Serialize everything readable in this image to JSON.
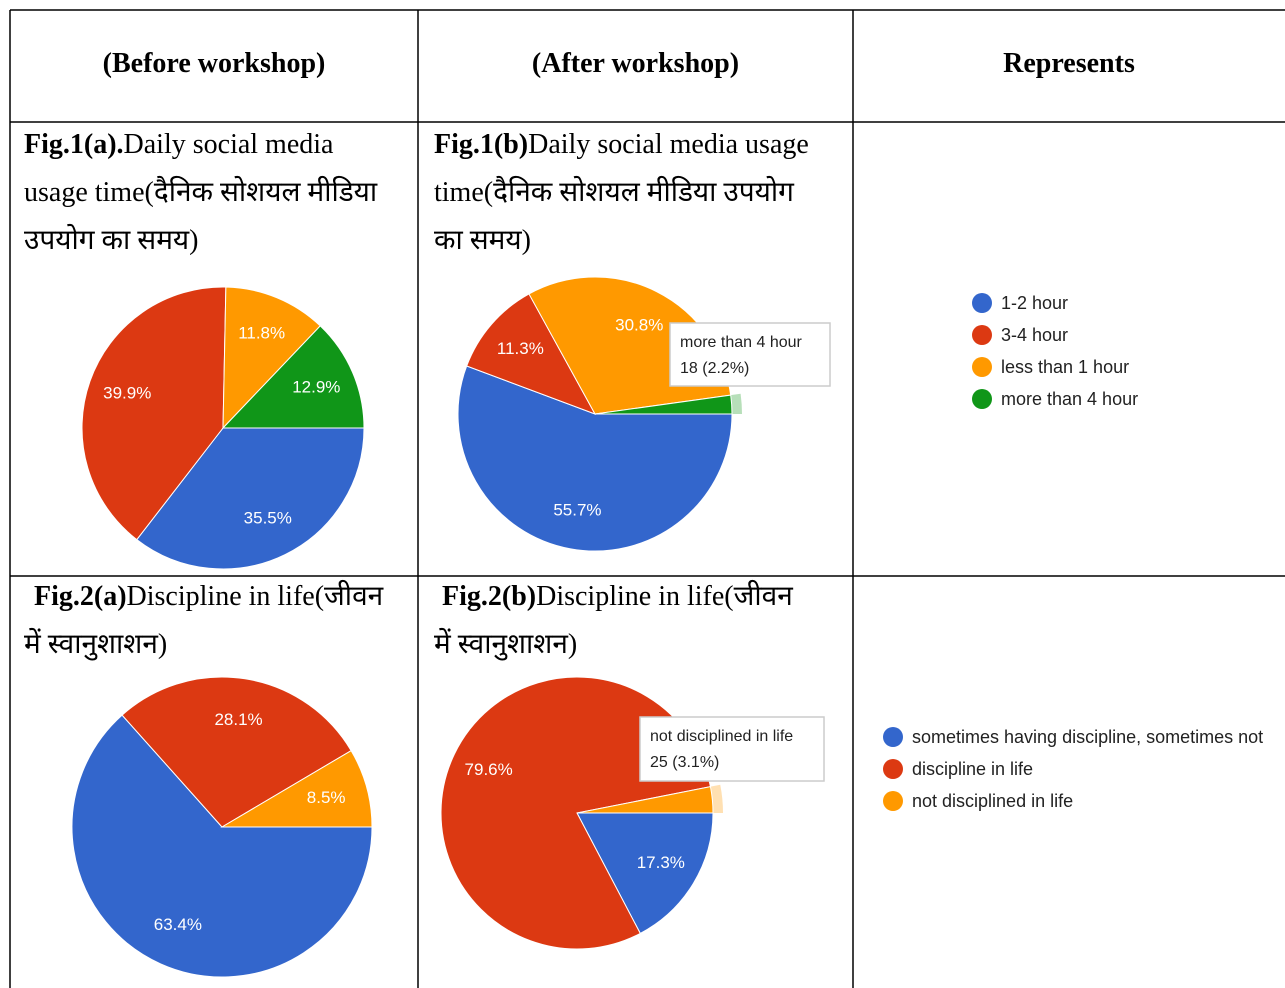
{
  "table": {
    "headers": [
      "(Before workshop)",
      "(After workshop)",
      "Represents"
    ],
    "rows": [
      {
        "legend": {
          "categories": [
            "1-2 hour",
            "3-4 hour",
            "less than 1 hour",
            "more than 4 hour"
          ],
          "colors": [
            "#3366cc",
            "#dc3912",
            "#ff9900",
            "#109618"
          ]
        },
        "charts": [
          {
            "type": "pie",
            "caption_bold": "Fig.1(a).",
            "caption": "Daily social media usage time(दैनिक सोशयल मीडिया उपयोग का समय)",
            "values": [
              35.5,
              39.9,
              11.8,
              12.9
            ],
            "value_labels": [
              "35.5%",
              "39.9%",
              "11.8%",
              "12.9%"
            ]
          },
          {
            "type": "pie",
            "caption_bold": "Fig.1(b)",
            "caption": "Daily social media usage time(दैनिक सोशयल मीडिया उपयोग का समय)",
            "values": [
              55.7,
              11.3,
              30.8,
              2.2
            ],
            "value_labels": [
              "55.7%",
              "11.3%",
              "30.8%",
              null
            ],
            "tooltip": {
              "label": "more than 4 hour",
              "text": "18 (2.2%)"
            }
          }
        ]
      },
      {
        "legend": {
          "categories": [
            "sometimes having discipline, sometimes not",
            "discipline in life",
            "not disciplined in life"
          ],
          "colors": [
            "#3366cc",
            "#dc3912",
            "#ff9900"
          ]
        },
        "charts": [
          {
            "type": "pie",
            "caption_bold": "Fig.2(a)",
            "caption": "Discipline in life(जीवन में स्वानुशाशन)",
            "values": [
              63.4,
              28.1,
              8.5
            ],
            "value_labels": [
              "63.4%",
              "28.1%",
              "8.5%"
            ]
          },
          {
            "type": "pie",
            "caption_bold": "Fig.2(b)",
            "caption": "Discipline in life(जीवन में स्वानुशाशन)",
            "values": [
              17.3,
              79.6,
              3.1
            ],
            "value_labels": [
              "17.3%",
              "79.6%",
              null
            ],
            "tooltip": {
              "label": "not disciplined in life",
              "text": "25 (3.1%)"
            }
          }
        ]
      }
    ]
  }
}
